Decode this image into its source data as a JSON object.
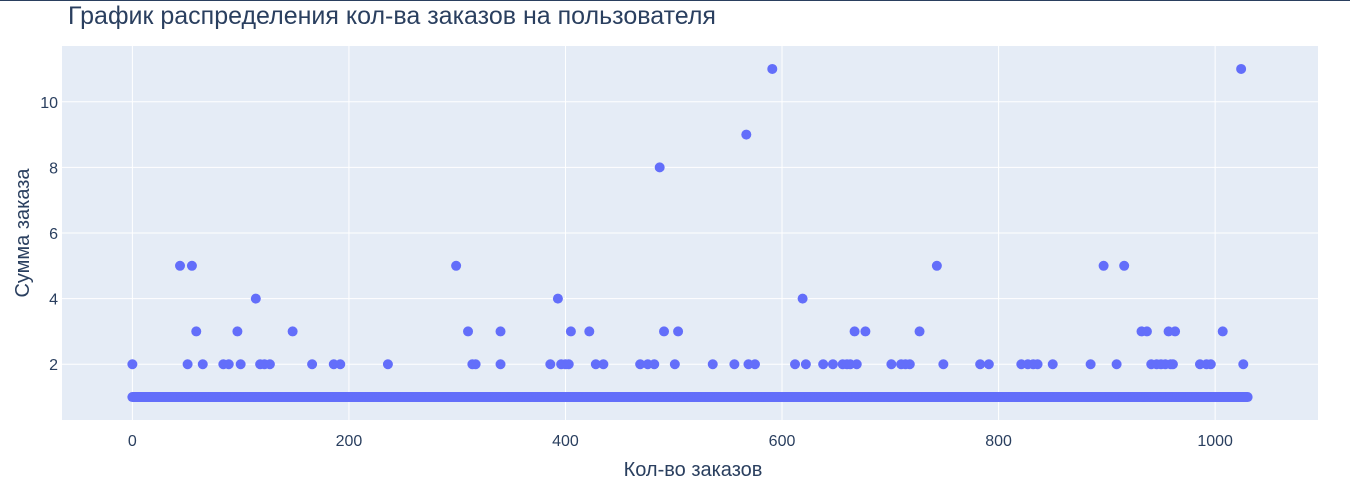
{
  "chart_data": {
    "type": "scatter",
    "title": "График распределения кол-ва заказов на пользователя",
    "xlabel": "Кол-во заказов",
    "ylabel": "Сумма заказа",
    "xlim": [
      -65,
      1095
    ],
    "ylim": [
      0.3,
      11.7
    ],
    "xticks": [
      0,
      200,
      400,
      600,
      800,
      1000
    ],
    "yticks": [
      2,
      4,
      6,
      8,
      10
    ],
    "grid": true,
    "legend": "none",
    "x_range": [
      0,
      1030
    ],
    "colors": {
      "marker": "#636efa",
      "plot_bg": "#e5ecf6",
      "grid": "#ffffff",
      "text": "#2a3f5f"
    },
    "baseline_value": 1,
    "series": [
      {
        "x": [
          0,
          44,
          51,
          55,
          59,
          65,
          84,
          89,
          97,
          100,
          114,
          118,
          122,
          127,
          148,
          166,
          186,
          192,
          236,
          299,
          310,
          314,
          317,
          340,
          340,
          386,
          393,
          396,
          400,
          403,
          405,
          422,
          428,
          435,
          469,
          476,
          482,
          487,
          491,
          501,
          504,
          536,
          556,
          567,
          569,
          575,
          591,
          612,
          619,
          622,
          638,
          647,
          656,
          660,
          663,
          667,
          669,
          677,
          701,
          710,
          714,
          718,
          727,
          743,
          749,
          783,
          791,
          821,
          827,
          832,
          836,
          850,
          885,
          897,
          909,
          916,
          932,
          937,
          941,
          946,
          950,
          954,
          957,
          959,
          961,
          963,
          986,
          992,
          996,
          1007,
          1024,
          1026
        ],
        "y": [
          2,
          5,
          2,
          5,
          3,
          2,
          2,
          2,
          3,
          2,
          4,
          2,
          2,
          2,
          3,
          2,
          2,
          2,
          2,
          5,
          3,
          2,
          2,
          3,
          2,
          2,
          4,
          2,
          2,
          2,
          3,
          3,
          2,
          2,
          2,
          2,
          2,
          8,
          3,
          2,
          3,
          2,
          2,
          9,
          2,
          2,
          11,
          2,
          4,
          2,
          2,
          2,
          2,
          2,
          2,
          3,
          2,
          3,
          2,
          2,
          2,
          2,
          3,
          5,
          2,
          2,
          2,
          2,
          2,
          2,
          2,
          2,
          2,
          5,
          2,
          5,
          3,
          3,
          2,
          2,
          2,
          2,
          3,
          2,
          2,
          3,
          2,
          2,
          2,
          3,
          11,
          2
        ]
      }
    ]
  }
}
